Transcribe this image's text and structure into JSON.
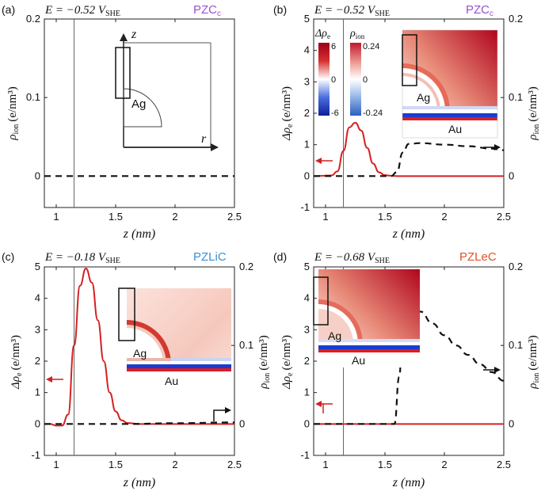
{
  "colors": {
    "red_curve": "#d42020",
    "black_dash": "#111111",
    "pzc_label": "#9b4fd6",
    "pzlic_label": "#3a8fd8",
    "pzlec_label": "#e0522a",
    "heat_red": "#b2001c",
    "heat_blue": "#1a3ccf"
  },
  "panels": [
    {
      "tag": "(a)",
      "potential": "E = −0.52 V",
      "potential_sub": "SHE",
      "pzc_label": "PZC",
      "pzc_sub": "c",
      "left_axis_label": "ρ",
      "left_axis_sub": "ion",
      "left_axis_unit": "(e/nm³)",
      "x_label": "z (nm)",
      "schematic": {
        "sphere_label": "Ag",
        "axis_z": "z",
        "axis_r": "r"
      }
    },
    {
      "tag": "(b)",
      "potential": "E = −0.52 V",
      "potential_sub": "SHE",
      "pzc_label": "PZC",
      "pzc_sub": "c",
      "left_axis_label": "Δρ",
      "left_axis_sub": "e",
      "left_axis_unit": "(e/nm³)",
      "right_axis_label": "ρ",
      "right_axis_sub": "ion",
      "right_axis_unit": "(e/nm³)",
      "x_label": "z (nm)",
      "inset": {
        "sphere_label": "Ag",
        "substrate_label": "Au"
      },
      "colorbars": {
        "de_title": "Δρ",
        "de_sub": "e",
        "de_max": "6",
        "de_mid": "0",
        "de_min": "-6",
        "ion_title": "ρ",
        "ion_sub": "ion",
        "ion_max": "0.24",
        "ion_mid": "0",
        "ion_min": "-0.24"
      }
    },
    {
      "tag": "(c)",
      "potential": "E = −0.18 V",
      "potential_sub": "SHE",
      "pzc_label": "PZLiC",
      "left_axis_label": "Δρ",
      "left_axis_sub": "e",
      "left_axis_unit": "(e/nm³)",
      "right_axis_label": "ρ",
      "right_axis_sub": "ion",
      "right_axis_unit": "(e/nm³)",
      "x_label": "z (nm)",
      "inset": {
        "sphere_label": "Ag",
        "substrate_label": "Au"
      }
    },
    {
      "tag": "(d)",
      "potential": "E = −0.68 V",
      "potential_sub": "SHE",
      "pzc_label": "PZLeC",
      "left_axis_label": "Δρ",
      "left_axis_sub": "e",
      "left_axis_unit": "(e/nm³)",
      "right_axis_label": "ρ",
      "right_axis_sub": "ion",
      "right_axis_unit": "(e/nm³)",
      "x_label": "z (nm)",
      "inset": {
        "sphere_label": "Ag",
        "substrate_label": "Au"
      }
    }
  ],
  "chart_data": [
    {
      "type": "line",
      "xlim": [
        0.9,
        2.5
      ],
      "xticks": [
        1,
        1.5,
        2,
        2.5
      ],
      "ylim": [
        -0.04,
        0.2
      ],
      "yticks": [
        0,
        0.1,
        0.2
      ],
      "vline_x": 1.15,
      "series": [
        {
          "axis": "left",
          "style": "dashed",
          "color": "#111111",
          "x": [
            0.9,
            2.5
          ],
          "y": [
            0,
            0
          ]
        }
      ]
    },
    {
      "type": "line",
      "xlim": [
        0.9,
        2.5
      ],
      "xticks": [
        1,
        1.5,
        2,
        2.5
      ],
      "ylim_left": [
        -1,
        5
      ],
      "yticks_left": [
        -1,
        0,
        1,
        2,
        3,
        4,
        5
      ],
      "ylim_right": [
        -0.04,
        0.2
      ],
      "yticks_right": [
        0,
        0.1,
        0.2
      ],
      "vline_x": 1.15,
      "series": [
        {
          "axis": "left",
          "style": "solid",
          "color": "#d42020",
          "x": [
            0.9,
            1.05,
            1.1,
            1.15,
            1.2,
            1.25,
            1.3,
            1.35,
            1.4,
            1.45,
            1.5,
            1.55,
            1.6,
            2.5
          ],
          "y": [
            0,
            0.02,
            0.15,
            0.8,
            1.55,
            1.7,
            1.45,
            0.9,
            0.4,
            0.12,
            0.03,
            0.01,
            0,
            0
          ]
        },
        {
          "axis": "right",
          "style": "dashed",
          "color": "#111111",
          "x": [
            0.9,
            1.55,
            1.6,
            1.65,
            1.7,
            1.8,
            2.0,
            2.2,
            2.4,
            2.5
          ],
          "y": [
            0,
            0,
            0.005,
            0.03,
            0.041,
            0.042,
            0.04,
            0.038,
            0.035,
            0.033
          ]
        }
      ]
    },
    {
      "type": "line",
      "xlim": [
        0.9,
        2.5
      ],
      "xticks": [
        1,
        1.5,
        2,
        2.5
      ],
      "ylim_left": [
        -1,
        5
      ],
      "yticks_left": [
        -1,
        0,
        1,
        2,
        3,
        4,
        5
      ],
      "ylim_right": [
        -0.04,
        0.2
      ],
      "yticks_right": [
        0,
        0.1,
        0.2
      ],
      "vline_x": 1.15,
      "series": [
        {
          "axis": "left",
          "style": "solid",
          "color": "#d42020",
          "x": [
            0.9,
            0.95,
            1.0,
            1.05,
            1.1,
            1.15,
            1.2,
            1.25,
            1.3,
            1.35,
            1.4,
            1.45,
            1.5,
            1.55,
            1.6,
            1.7,
            2.5
          ],
          "y": [
            0,
            0,
            -0.05,
            -0.05,
            0.3,
            2.5,
            4.4,
            4.95,
            4.5,
            3.3,
            2.0,
            1.0,
            0.4,
            0.12,
            0.03,
            0,
            0
          ]
        },
        {
          "axis": "right",
          "style": "dashed",
          "color": "#111111",
          "x": [
            0.9,
            1.6,
            2.0,
            2.5
          ],
          "y": [
            0,
            0,
            0.001,
            0.002
          ]
        }
      ]
    },
    {
      "type": "line",
      "xlim": [
        0.9,
        2.5
      ],
      "xticks": [
        1,
        1.5,
        2,
        2.5
      ],
      "ylim_left": [
        -1,
        5
      ],
      "yticks_left": [
        -1,
        0,
        1,
        2,
        3,
        4,
        5
      ],
      "ylim_right": [
        -0.04,
        0.2
      ],
      "yticks_right": [
        0,
        0.1,
        0.2
      ],
      "vline_x": 1.15,
      "series": [
        {
          "axis": "left",
          "style": "solid",
          "color": "#d42020",
          "x": [
            0.9,
            2.5
          ],
          "y": [
            0,
            0
          ]
        },
        {
          "axis": "right",
          "style": "dashed",
          "color": "#111111",
          "x": [
            0.9,
            1.58,
            1.62,
            1.65,
            1.7,
            1.8,
            1.9,
            2.0,
            2.1,
            2.2,
            2.3,
            2.4,
            2.5
          ],
          "y": [
            0,
            0,
            0.06,
            0.13,
            0.15,
            0.143,
            0.128,
            0.113,
            0.1,
            0.088,
            0.076,
            0.066,
            0.055
          ]
        }
      ]
    }
  ]
}
